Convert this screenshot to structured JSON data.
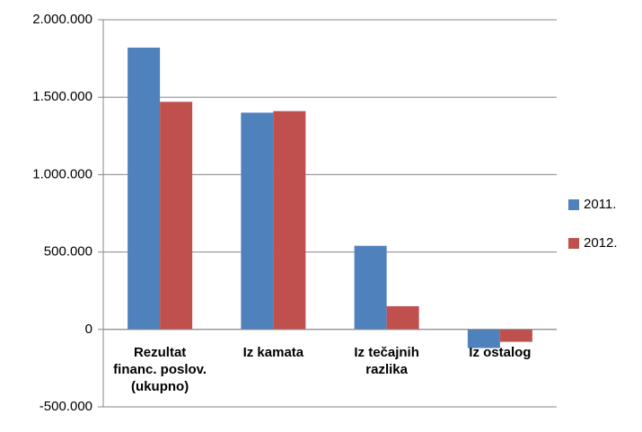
{
  "chart_data": {
    "type": "bar",
    "categories": [
      "Rezultat financ. poslov. (ukupno)",
      "Iz kamata",
      "Iz tečajnih razlika",
      "Iz ostalog"
    ],
    "series": [
      {
        "name": "2011.",
        "color": "#4f81bd",
        "values": [
          1820000,
          1400000,
          540000,
          -120000
        ]
      },
      {
        "name": "2012.",
        "color": "#c0504d",
        "values": [
          1470000,
          1410000,
          150000,
          -80000
        ]
      }
    ],
    "ylim": [
      -500000,
      2000000
    ],
    "yticks": [
      {
        "value": -500000,
        "label": "-500.000"
      },
      {
        "value": 0,
        "label": "0"
      },
      {
        "value": 500000,
        "label": "500.000"
      },
      {
        "value": 1000000,
        "label": "1.000.000"
      },
      {
        "value": 1500000,
        "label": "1.500.000"
      },
      {
        "value": 2000000,
        "label": "2.000.000"
      }
    ],
    "grid": true,
    "legend": "right"
  }
}
